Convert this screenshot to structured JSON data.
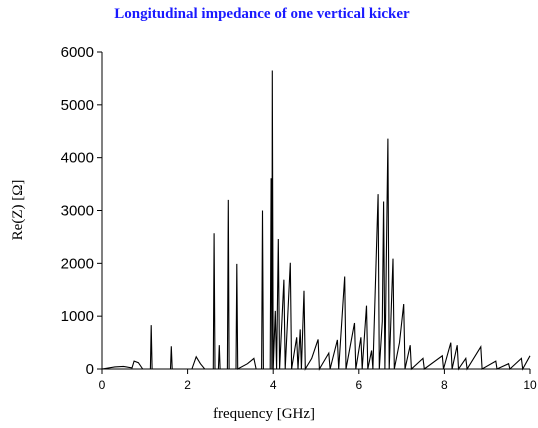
{
  "chart_data": {
    "type": "line",
    "title": "Longitudinal impedance of one vertical kicker",
    "x_label": "frequency [GHz]",
    "y_label": "Re(Z) [Ω]",
    "xlim": [
      0,
      10
    ],
    "ylim": [
      0,
      6000
    ],
    "xticks": [
      0,
      2,
      4,
      6,
      8,
      10
    ],
    "yticks": [
      0,
      1000,
      2000,
      3000,
      4000,
      5000,
      6000
    ],
    "series": [
      {
        "color": "#000000",
        "x": [
          0,
          0.3,
          0.5,
          0.7,
          0.75,
          0.85,
          0.95,
          1.13,
          1.15,
          1.17,
          1.6,
          1.62,
          1.64,
          2.1,
          2.2,
          2.3,
          2.4,
          2.6,
          2.62,
          2.64,
          2.72,
          2.74,
          2.76,
          2.93,
          2.95,
          2.97,
          3.13,
          3.15,
          3.17,
          3.4,
          3.55,
          3.6,
          3.73,
          3.75,
          3.77,
          3.93,
          3.95,
          3.97,
          3.98,
          4.0,
          4.05,
          4.08,
          4.12,
          4.15,
          4.25,
          4.28,
          4.4,
          4.43,
          4.55,
          4.58,
          4.63,
          4.66,
          4.72,
          4.75,
          4.9,
          5.05,
          5.08,
          5.3,
          5.33,
          5.5,
          5.53,
          5.67,
          5.7,
          5.9,
          5.93,
          6.05,
          6.08,
          6.18,
          6.21,
          6.3,
          6.33,
          6.45,
          6.48,
          6.55,
          6.58,
          6.61,
          6.68,
          6.71,
          6.8,
          6.83,
          6.95,
          7.05,
          7.08,
          7.2,
          7.23,
          7.5,
          7.53,
          7.95,
          7.98,
          8.15,
          8.18,
          8.3,
          8.33,
          8.5,
          8.53,
          8.85,
          8.88,
          9.2,
          9.23,
          9.5,
          9.53,
          9.8,
          9.83,
          10
        ],
        "values": [
          0,
          40,
          50,
          20,
          150,
          120,
          0,
          0,
          830,
          0,
          0,
          430,
          0,
          0,
          230,
          100,
          0,
          0,
          2570,
          0,
          0,
          450,
          0,
          0,
          3200,
          0,
          0,
          1990,
          0,
          100,
          200,
          0,
          0,
          3000,
          0,
          0,
          3610,
          0,
          5650,
          0,
          1100,
          0,
          2460,
          0,
          1690,
          0,
          2010,
          0,
          600,
          0,
          750,
          0,
          1480,
          0,
          200,
          560,
          0,
          300,
          0,
          550,
          0,
          1750,
          0,
          870,
          0,
          600,
          0,
          1200,
          0,
          350,
          0,
          3310,
          0,
          900,
          3170,
          0,
          4360,
          0,
          2090,
          0,
          500,
          1230,
          0,
          450,
          0,
          200,
          0,
          250,
          0,
          500,
          0,
          450,
          0,
          200,
          0,
          420,
          0,
          150,
          0,
          100,
          0,
          200,
          0,
          250
        ]
      }
    ]
  }
}
